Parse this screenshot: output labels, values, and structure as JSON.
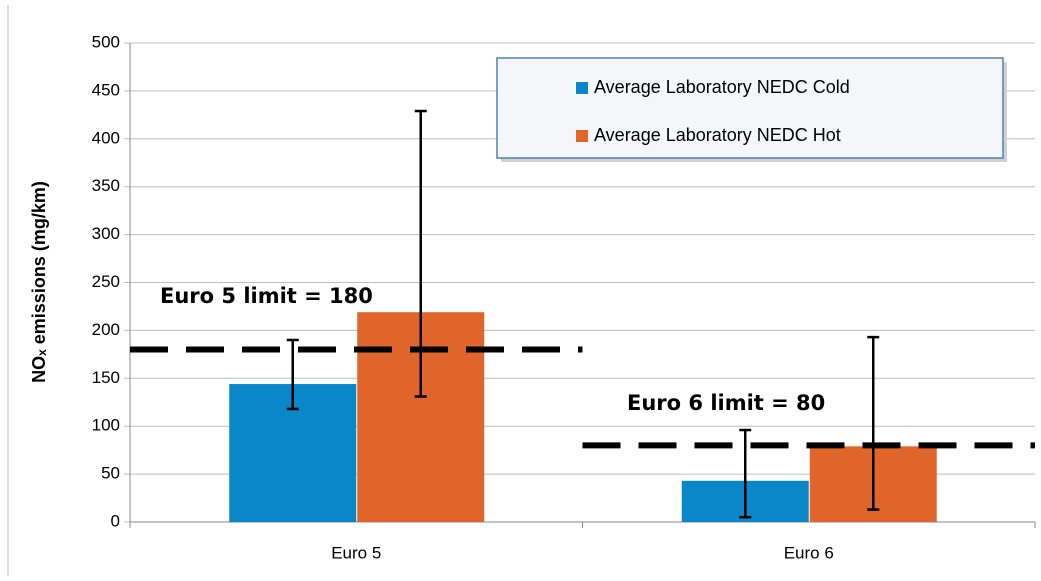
{
  "chart_data": {
    "type": "bar",
    "ylabel": "NOₓ emissions (mg/km)",
    "categories": [
      "Euro 5",
      "Euro 6"
    ],
    "series": [
      {
        "name": "Average Laboratory NEDC Cold",
        "color": "#0a87c9",
        "values": [
          144,
          43
        ],
        "low": [
          118,
          5
        ],
        "high": [
          190,
          96
        ]
      },
      {
        "name": "Average Laboratory NEDC Hot",
        "color": "#e0652a",
        "values": [
          219,
          79
        ],
        "low": [
          131,
          13
        ],
        "high": [
          429,
          193
        ]
      }
    ],
    "limits": [
      {
        "label": "Euro 5 limit = 180",
        "value": 180
      },
      {
        "label": "Euro 6 limit = 80",
        "value": 80
      }
    ],
    "ylim": [
      0,
      500
    ],
    "yticks": [
      0,
      50,
      100,
      150,
      200,
      250,
      300,
      350,
      400,
      450,
      500
    ],
    "grid": true,
    "legend": "top-right"
  }
}
